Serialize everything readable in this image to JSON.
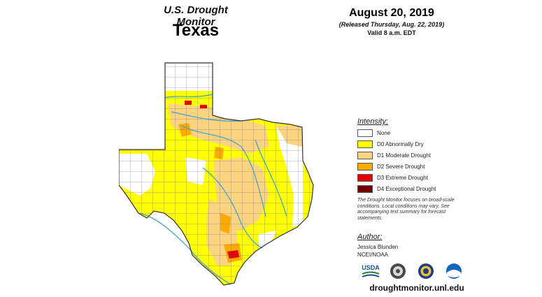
{
  "header": {
    "title": "U.S. Drought Monitor",
    "state": "Texas",
    "date": "August 20, 2019",
    "released": "(Released Thursday, Aug. 22, 2019)",
    "valid": "Valid 8 a.m. EDT"
  },
  "legend": {
    "title": "Intensity:",
    "items": [
      {
        "label": "None",
        "color": "#ffffff"
      },
      {
        "label": "D0 Abnormally Dry",
        "color": "#ffff00"
      },
      {
        "label": "D1 Moderate Drought",
        "color": "#fcd37f"
      },
      {
        "label": "D2 Severe Drought",
        "color": "#ffaa00"
      },
      {
        "label": "D3 Extreme Drought",
        "color": "#e60000"
      },
      {
        "label": "D4 Exceptional Drought",
        "color": "#730000"
      }
    ]
  },
  "note": "The Drought Monitor focuses on broad-scale conditions. Local conditions may vary. See accompanying text summary for forecast statements.",
  "author": {
    "title": "Author:",
    "name": "Jessica Blunden",
    "org": "NCEI/NOAA"
  },
  "logos": {
    "usda": "USDA"
  },
  "footer": {
    "url": "droughtmonitor.unl.edu"
  },
  "colors": {
    "river": "#3aa0d8",
    "county_border": "#555555"
  }
}
